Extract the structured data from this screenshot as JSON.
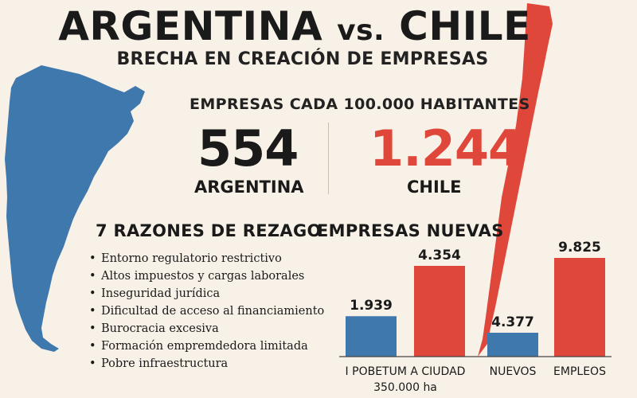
{
  "header": {
    "title_left": "ARGENTINA",
    "title_vs": "vs.",
    "title_right": "CHILE",
    "subtitle": "BRECHA EN CREACIÓN DE EMPRESAS"
  },
  "metric": {
    "title": "EMPRESAS CADA 100.000 HABITANTES",
    "argentina": {
      "value": "554",
      "label": "ARGENTINA"
    },
    "chile": {
      "value": "1.244",
      "label": "CHILE"
    }
  },
  "reasons": {
    "heading": "7 RAZONES DE REZAGO",
    "items": [
      "Entorno regulatorio restrictivo",
      "Altos impuestos y cargas laborales",
      "Inseguridad jurídica",
      "Dificultad de acceso al financiamiento",
      "Burocracia excesiva",
      "Formación empremdedora limitada",
      "Pobre infraestructura"
    ]
  },
  "colors": {
    "argentina": "#3f78ad",
    "chile": "#e0473b",
    "background": "#f8f1e7"
  },
  "chart_data": {
    "type": "bar",
    "title": "EMPRESAS NUEVAS",
    "groups": [
      {
        "label_lines": [
          "I POBETUM A CIUDAD",
          "350.000 ha"
        ],
        "bars": [
          {
            "value": 1939,
            "label": "1.939",
            "color": "#3f78ad"
          },
          {
            "value": 4354,
            "label": "4.354",
            "color": "#e0473b"
          }
        ]
      },
      {
        "label_lines": [
          "NUEVOS"
        ],
        "bars": [
          {
            "value": 4377,
            "label": "4.377",
            "color": "#3f78ad"
          }
        ]
      },
      {
        "label_lines": [
          "EMPLEOS"
        ],
        "bars": [
          {
            "value": 9825,
            "label": "9.825",
            "color": "#e0473b"
          }
        ]
      }
    ],
    "xlabel": "",
    "ylabel": ""
  }
}
